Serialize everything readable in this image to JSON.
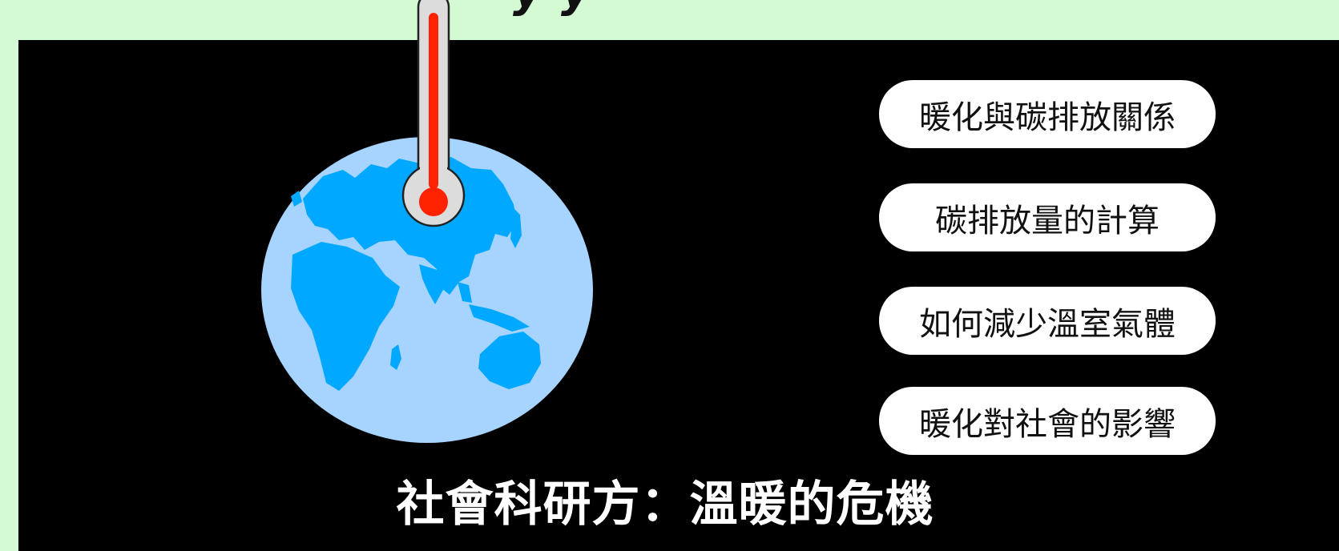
{
  "header": {
    "partial_text": "y          y"
  },
  "illustration": {
    "globe_icon": "globe-icon",
    "thermometer_icon": "thermometer-icon",
    "colors": {
      "ocean": "#a6d4ff",
      "land": "#00a8ff",
      "thermometer_body": "#dcdcdc",
      "mercury": "#ff2200"
    }
  },
  "topics": [
    {
      "label": "暖化與碳排放關係"
    },
    {
      "label": "碳排放量的計算"
    },
    {
      "label": "如何減少溫室氣體"
    },
    {
      "label": "暖化對社會的影響"
    }
  ],
  "slide": {
    "title": "社會科研方：溫暖的危機"
  },
  "colors": {
    "page_background": "#d4fad4",
    "panel_background": "#000000",
    "pill_background": "#ffffff",
    "title_text": "#ffffff"
  }
}
